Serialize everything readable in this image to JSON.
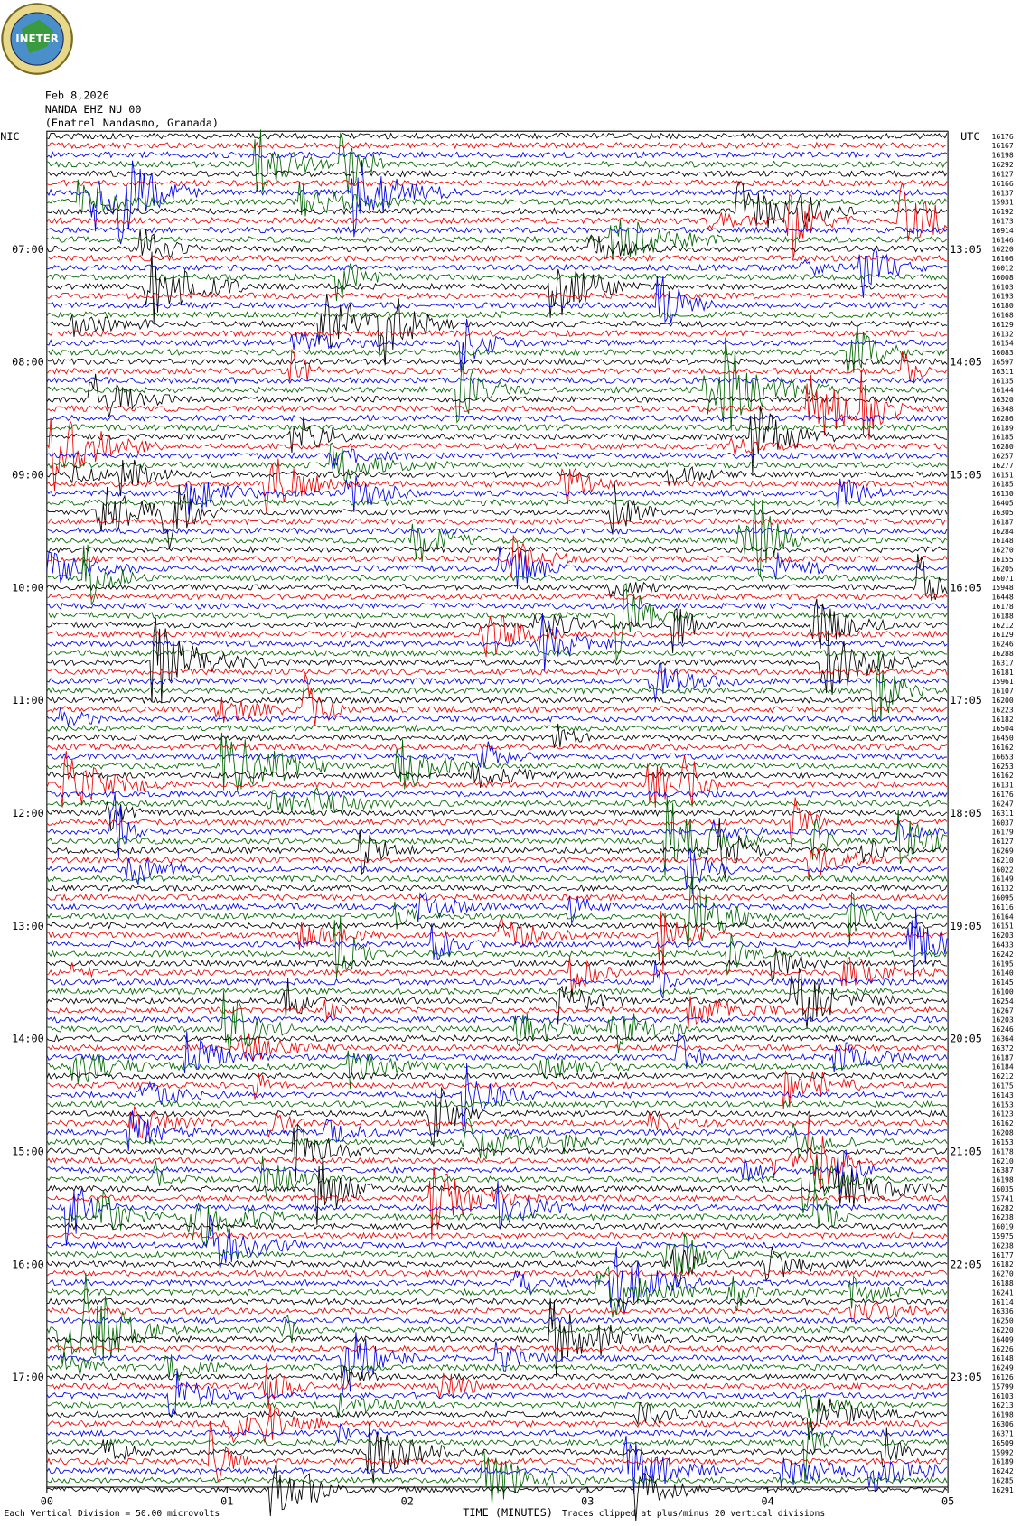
{
  "header": {
    "logo": "INETER",
    "date": "Feb 8,2026",
    "station": "NANDA EHZ NU 00",
    "location": "(Enatrel Nandasmo, Granada)"
  },
  "left_label": "NIC",
  "right_label": "UTC",
  "left_times": [
    "07:00",
    "08:00",
    "09:00",
    "10:00",
    "11:00",
    "12:00",
    "13:00",
    "14:00",
    "15:00",
    "16:00",
    "17:00"
  ],
  "right_times": [
    "13:05",
    "14:05",
    "15:05",
    "16:05",
    "17:05",
    "18:05",
    "19:05",
    "20:05",
    "21:05",
    "22:05",
    "23:05"
  ],
  "row_counts": [
    "16176",
    "16167",
    "16198",
    "16292",
    "16127",
    "16166",
    "16137",
    "15931",
    "16192",
    "16173",
    "16914",
    "16146",
    "16220",
    "16166",
    "16012",
    "16008",
    "16103",
    "16193",
    "16180",
    "16168",
    "16129",
    "16132",
    "16154",
    "16083",
    "16597",
    "16311",
    "16135",
    "16144",
    "16320",
    "16348",
    "16286",
    "16189",
    "16185",
    "16280",
    "16257",
    "16277",
    "16151",
    "16185",
    "16130",
    "16405",
    "16305",
    "16187",
    "16284",
    "16148",
    "16270",
    "16155",
    "16205",
    "16071",
    "15948",
    "16448",
    "16178",
    "16188",
    "16212",
    "16129",
    "16246",
    "16288",
    "16317",
    "16181",
    "15961",
    "16107",
    "16200",
    "16223",
    "16182",
    "16504",
    "16450",
    "16162",
    "16653",
    "16253",
    "16162",
    "16131",
    "16176",
    "16247",
    "16311",
    "16037",
    "16179",
    "16127",
    "16269",
    "16210",
    "16022",
    "16149",
    "16132",
    "16095",
    "16116",
    "16164",
    "16151",
    "16203",
    "16433",
    "16242",
    "16195",
    "16140",
    "16145",
    "16100",
    "16254",
    "16267",
    "16203",
    "16246",
    "16364",
    "16372",
    "16187",
    "16184",
    "16212",
    "16175",
    "16143",
    "16153",
    "16123",
    "16162",
    "16208",
    "16153",
    "16178",
    "16210",
    "16387",
    "16198",
    "16035",
    "15741",
    "16282",
    "16238",
    "16019",
    "15975",
    "16238",
    "16177",
    "16182",
    "16270",
    "16188",
    "16241",
    "16114",
    "16336",
    "16250",
    "16220",
    "16409",
    "16226",
    "16148",
    "16249",
    "16126",
    "15799",
    "16103",
    "16213",
    "16198",
    "16306",
    "16371",
    "16509",
    "15992",
    "16189",
    "16242",
    "16285",
    "16291"
  ],
  "x_axis": {
    "ticks": [
      "00",
      "01",
      "02",
      "03",
      "04",
      "05"
    ],
    "title": "TIME (MINUTES)"
  },
  "footer": {
    "scale_note": "Each Vertical Division =   50.00 microvolts",
    "clip_note": "Traces clipped at plus/minus 20 vertical divisions"
  }
}
